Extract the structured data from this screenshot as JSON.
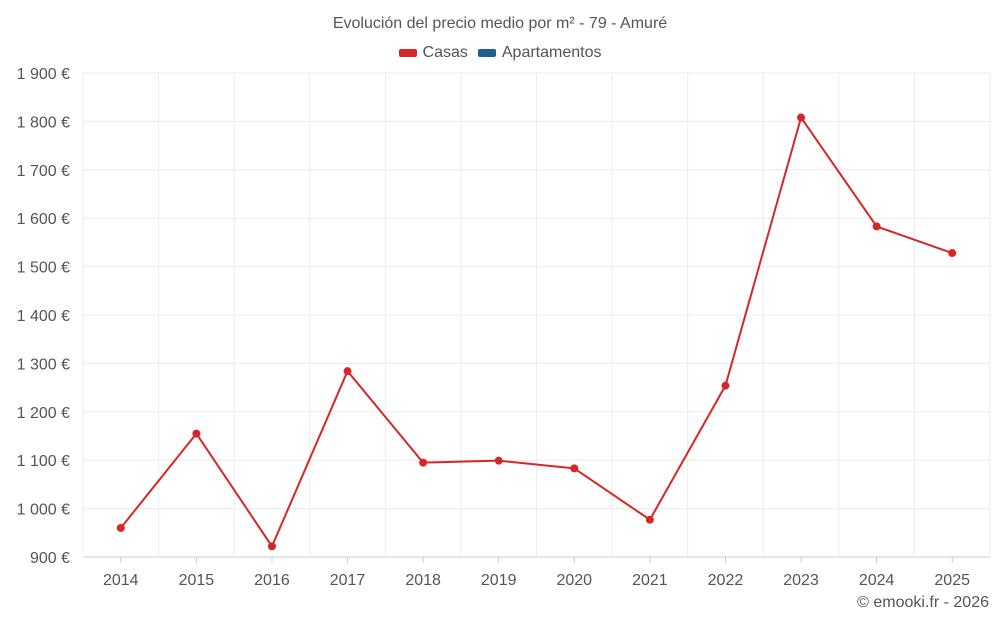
{
  "chart_data": {
    "type": "line",
    "title": "Evolución del precio medio por m² - 79 - Amuré",
    "legend": [
      {
        "name": "Casas",
        "color": "#d62728"
      },
      {
        "name": "Apartamentos",
        "color": "#1f5f8b"
      }
    ],
    "categories": [
      "2014",
      "2015",
      "2016",
      "2017",
      "2018",
      "2019",
      "2020",
      "2021",
      "2022",
      "2023",
      "2024",
      "2025"
    ],
    "series": [
      {
        "name": "Casas",
        "color": "#d62728",
        "values": [
          960,
          1155,
          922,
          1284,
          1095,
          1099,
          1083,
          977,
          1254,
          1808,
          1583,
          1528
        ]
      }
    ],
    "ylim": [
      900,
      1900
    ],
    "yticks": [
      900,
      1000,
      1100,
      1200,
      1300,
      1400,
      1500,
      1600,
      1700,
      1800,
      1900
    ],
    "ytick_labels": [
      "900 €",
      "1 000 €",
      "1 100 €",
      "1 200 €",
      "1 300 €",
      "1 400 €",
      "1 500 €",
      "1 600 €",
      "1 700 €",
      "1 800 €",
      "1 900 €"
    ],
    "grid": true,
    "legend_position": "top-center"
  },
  "credit": "© emooki.fr - 2026"
}
